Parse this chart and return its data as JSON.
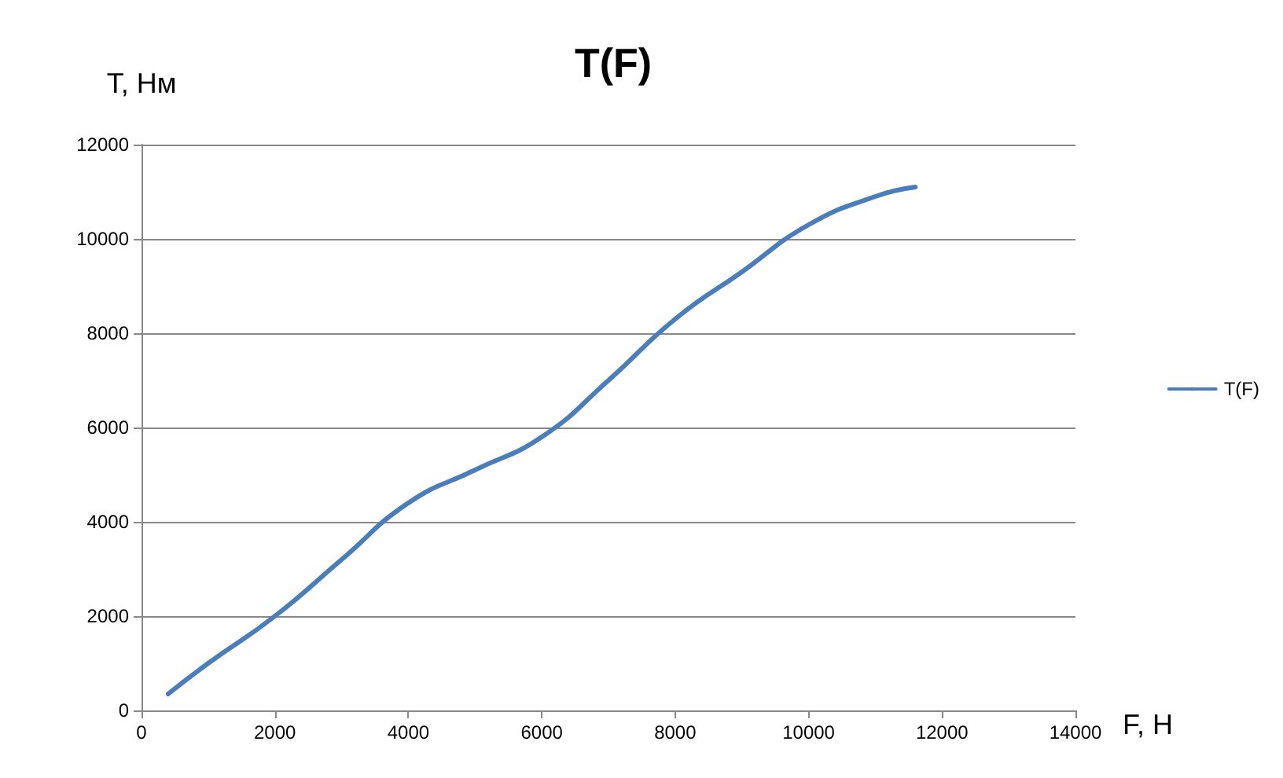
{
  "chart_data": {
    "type": "line",
    "title": "T(F)",
    "xlabel": "F, Н",
    "ylabel": "T, Нм",
    "x": [
      400,
      1000,
      2000,
      3000,
      4000,
      5000,
      6000,
      7000,
      8000,
      9000,
      10000,
      11000,
      11600
    ],
    "series": [
      {
        "name": "T(F)",
        "color": "#4a7ebb",
        "values": [
          350,
          1000,
          2000,
          3200,
          4400,
          5100,
          5800,
          7000,
          8300,
          9300,
          10300,
          10900,
          11100
        ]
      }
    ],
    "xlim": [
      0,
      14000
    ],
    "xticks": [
      0,
      2000,
      4000,
      6000,
      8000,
      10000,
      12000,
      14000
    ],
    "ylim": [
      0,
      12000
    ],
    "yticks": [
      0,
      2000,
      4000,
      6000,
      8000,
      10000,
      12000
    ],
    "grid": "y",
    "legend": "right",
    "marker": "none",
    "line_style": "solid"
  }
}
